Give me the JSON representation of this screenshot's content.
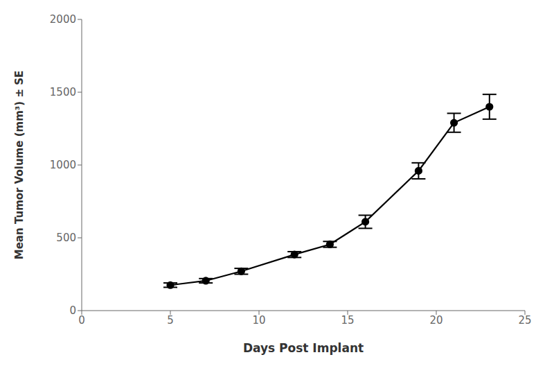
{
  "chart_data": {
    "type": "line",
    "x": [
      5,
      7,
      9,
      12,
      14,
      16,
      19,
      21,
      23
    ],
    "values": [
      175,
      205,
      270,
      385,
      455,
      610,
      960,
      1290,
      1400
    ],
    "yerr": [
      15,
      15,
      20,
      20,
      20,
      45,
      55,
      65,
      85
    ],
    "xlabel": "Days Post Implant",
    "ylabel": "Mean Tumor Volume (mm³) ± SE",
    "xlim": [
      0,
      25
    ],
    "ylim": [
      0,
      2000
    ],
    "xticks": [
      0,
      5,
      10,
      15,
      20,
      25
    ],
    "yticks": [
      0,
      500,
      1000,
      1500,
      2000
    ],
    "color": "#000000",
    "marker": "circle",
    "grid": false
  }
}
